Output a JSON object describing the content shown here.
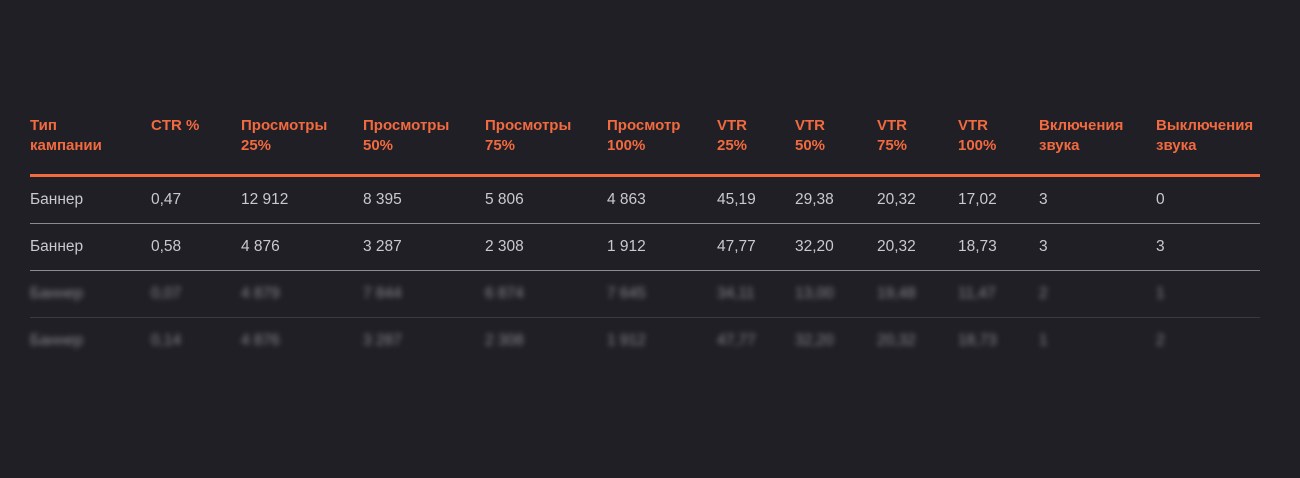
{
  "table": {
    "headers": [
      [
        "Тип",
        "кампании"
      ],
      [
        "CTR %",
        ""
      ],
      [
        "Просмотры",
        "25%"
      ],
      [
        "Просмотры",
        "50%"
      ],
      [
        "Просмотры",
        "75%"
      ],
      [
        "Просмотр",
        "100%"
      ],
      [
        "VTR",
        "25%"
      ],
      [
        "VTR",
        "50%"
      ],
      [
        "VTR",
        "75%"
      ],
      [
        "VTR",
        "100%"
      ],
      [
        "Включения",
        "звука"
      ],
      [
        "Выключения",
        "звука"
      ]
    ],
    "rows": [
      [
        "Баннер",
        "0,47",
        "12 912",
        "8 395",
        "5 806",
        "4 863",
        "45,19",
        "29,38",
        "20,32",
        "17,02",
        "3",
        "0"
      ],
      [
        "Баннер",
        "0,58",
        "4 876",
        "3 287",
        "2 308",
        "1 912",
        "47,77",
        "32,20",
        "20,32",
        "18,73",
        "3",
        "3"
      ],
      [
        "Баннер",
        "0,07",
        "4 879",
        "7 844",
        "6 874",
        "7 645",
        "34,11",
        "13,00",
        "19,48",
        "11,47",
        "2",
        "1"
      ],
      [
        "Баннер",
        "0,14",
        "4 876",
        "3 287",
        "2 308",
        "1 912",
        "47,77",
        "32,20",
        "20,32",
        "18,73",
        "1",
        "2"
      ]
    ]
  }
}
